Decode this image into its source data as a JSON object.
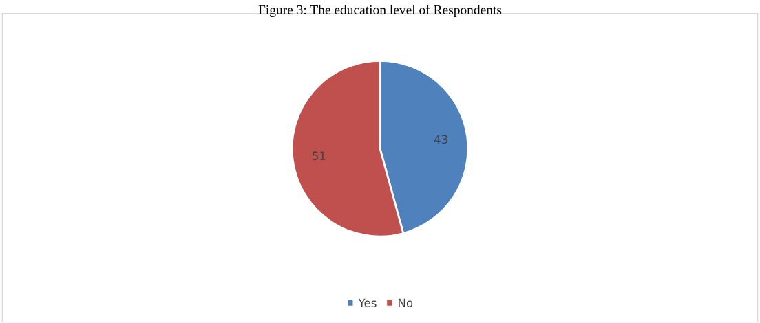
{
  "chart_data": {
    "type": "pie",
    "title": "Figure 3: The education level of Respondents",
    "categories": [
      "Yes",
      "No"
    ],
    "values": [
      43,
      51
    ],
    "colors": [
      "#4f81bd",
      "#c0504d"
    ],
    "data_labels": true,
    "legend": "bottom"
  }
}
